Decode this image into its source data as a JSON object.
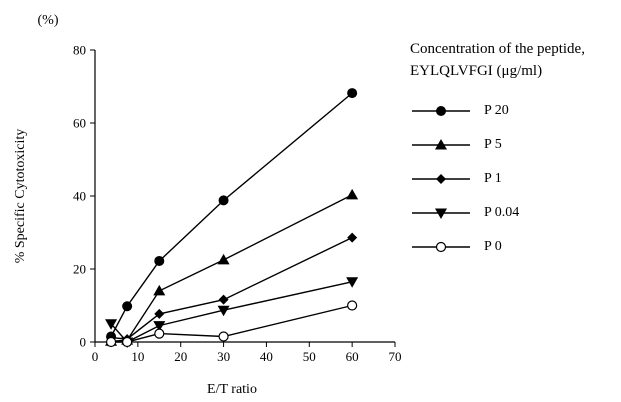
{
  "chart_data": {
    "type": "line",
    "unit_label": "(%)",
    "xlabel": "E/T ratio",
    "ylabel": "% Specific Cytotoxicity",
    "xlim": [
      0,
      70
    ],
    "ylim": [
      0,
      80
    ],
    "xticks": [
      0,
      10,
      20,
      30,
      40,
      50,
      60,
      70
    ],
    "yticks": [
      0,
      20,
      40,
      60,
      80
    ],
    "grid": false,
    "legend_title_lines": [
      "Concentration of the peptide,",
      "EYLQLVFGI (μg/ml)"
    ],
    "legend_position": "right",
    "series": [
      {
        "name": "P 20",
        "marker": "circle-filled",
        "x": [
          3.75,
          7.5,
          15,
          30,
          60
        ],
        "values": [
          1.5,
          9.8,
          22.2,
          38.8,
          68.2
        ]
      },
      {
        "name": "P 5",
        "marker": "triangle-up",
        "x": [
          3.75,
          7.5,
          15,
          30,
          60
        ],
        "values": [
          0.2,
          0.5,
          14.0,
          22.5,
          40.3
        ]
      },
      {
        "name": "P 1",
        "marker": "diamond",
        "x": [
          3.75,
          7.5,
          15,
          30,
          60
        ],
        "values": [
          1.2,
          0.8,
          7.7,
          11.6,
          28.6
        ]
      },
      {
        "name": "P 0.04",
        "marker": "triangle-down",
        "x": [
          3.75,
          7.5,
          15,
          30,
          60
        ],
        "values": [
          5.0,
          0.0,
          4.5,
          8.7,
          16.5
        ]
      },
      {
        "name": "P 0",
        "marker": "circle-open",
        "x": [
          3.75,
          7.5,
          15,
          30,
          60
        ],
        "values": [
          0.0,
          0.0,
          2.3,
          1.5,
          10.0
        ]
      }
    ]
  }
}
